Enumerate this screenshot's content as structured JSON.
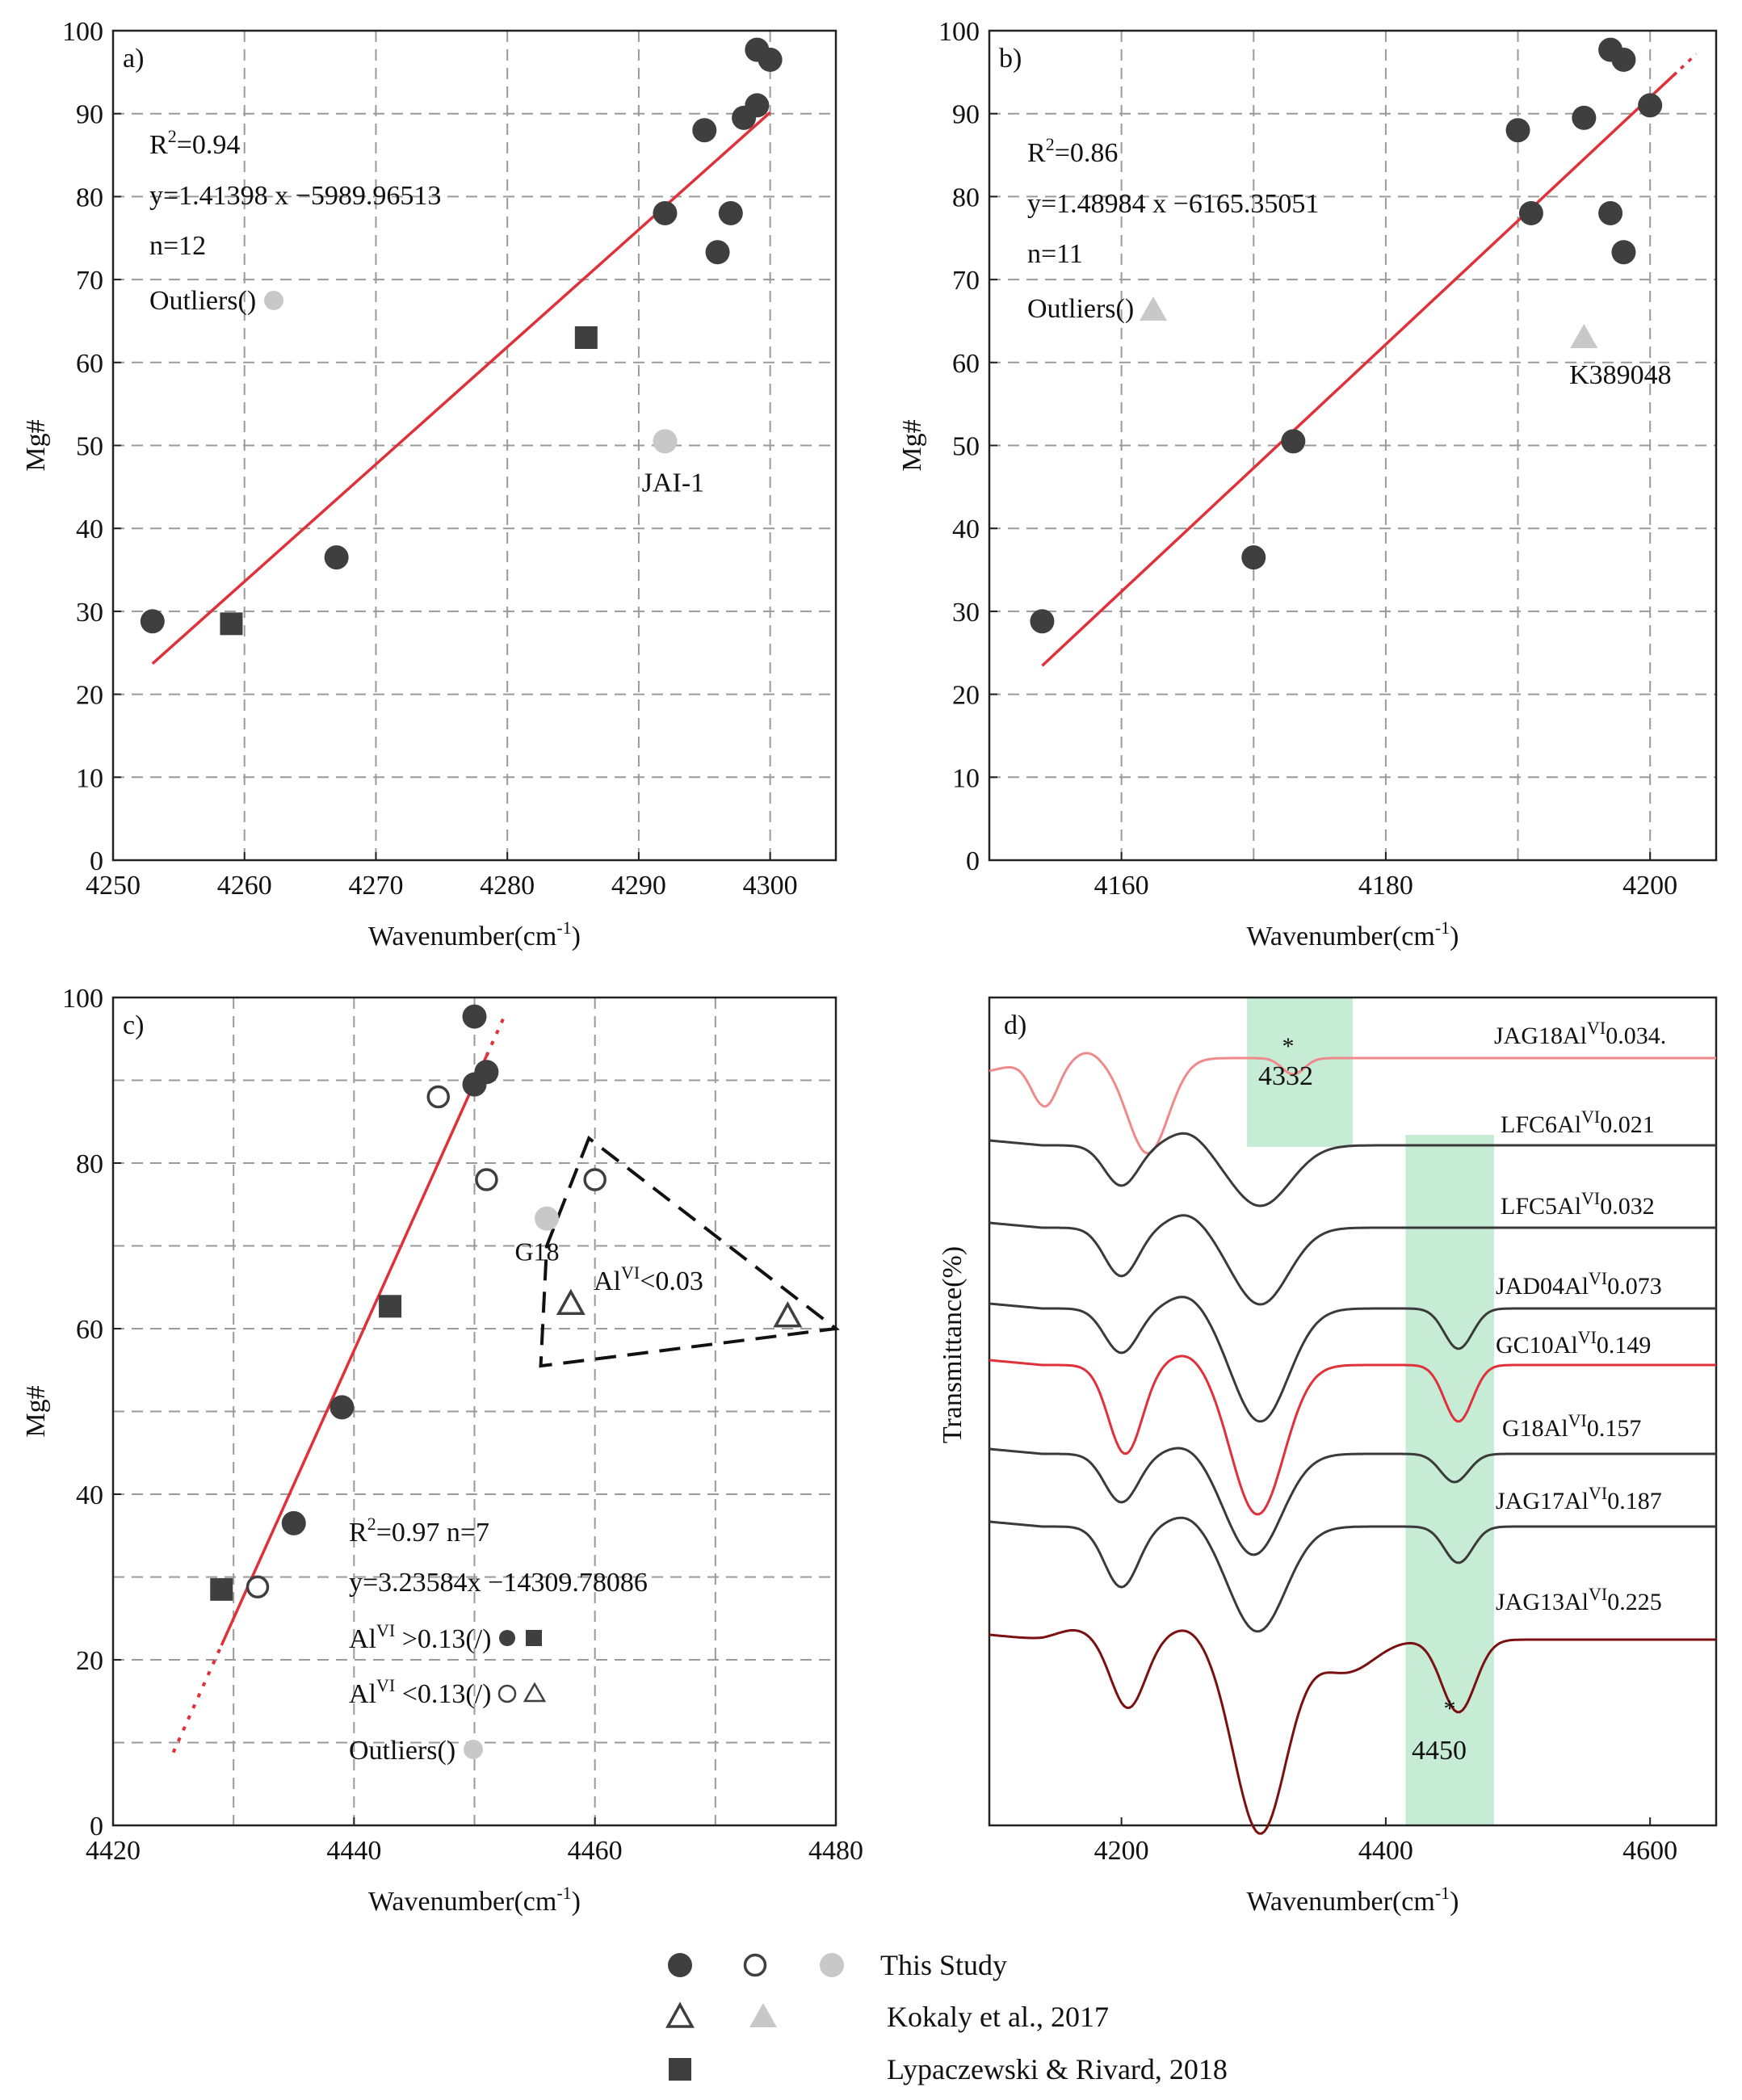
{
  "chart_data": [
    {
      "type": "scatter",
      "panel_label": "a)",
      "xlabel": "Wavenumber(cm",
      "xlabel_sup": "-1",
      "xlabel_close": ")",
      "ylabel": "Mg#",
      "xlim": [
        4250,
        4305
      ],
      "ylim": [
        0,
        100
      ],
      "xticks": [
        4250,
        4260,
        4270,
        4280,
        4290,
        4300
      ],
      "yticks": [
        0,
        10,
        20,
        30,
        40,
        50,
        60,
        70,
        80,
        90,
        100
      ],
      "annotations": {
        "r2_prefix": "R",
        "r2_sup": "2",
        "r2_value": "=0.94",
        "equation": "y=1.41398 x −5989.96513",
        "n": "n=12",
        "outliers": "Outliers(",
        "outliers_close": ")",
        "outlier_label": "JAI-1"
      },
      "fit_line": {
        "x0": 4253,
        "x1": 4300,
        "slope": 1.41398,
        "intercept": -5989.96513
      },
      "series": [
        {
          "name": "This Study (filled)",
          "marker": "circle-dark",
          "points": [
            [
              4253,
              28.8
            ],
            [
              4267,
              36.5
            ],
            [
              4292,
              78
            ],
            [
              4295,
              88
            ],
            [
              4296,
              73.3
            ],
            [
              4297,
              78
            ],
            [
              4298,
              89.5
            ],
            [
              4299,
              91
            ],
            [
              4299,
              97.7
            ],
            [
              4300,
              96.5
            ]
          ]
        },
        {
          "name": "Lypaczewski & Rivard, 2018",
          "marker": "square-dark",
          "points": [
            [
              4259,
              28.5
            ],
            [
              4286,
              63
            ]
          ]
        },
        {
          "name": "Outliers",
          "marker": "circle-gray",
          "points": [
            [
              4292,
              50.5
            ]
          ]
        }
      ]
    },
    {
      "type": "scatter",
      "panel_label": "b)",
      "xlabel": "Wavenumber(cm",
      "xlabel_sup": "-1",
      "xlabel_close": ")",
      "ylabel": "Mg#",
      "xlim": [
        4150,
        4205
      ],
      "ylim": [
        0,
        100
      ],
      "xticks": [
        4160,
        4180,
        4200
      ],
      "yticks": [
        0,
        10,
        20,
        30,
        40,
        50,
        60,
        70,
        80,
        90,
        100
      ],
      "annotations": {
        "r2_prefix": "R",
        "r2_sup": "2",
        "r2_value": "=0.86",
        "equation": "y=1.48984 x −6165.35051",
        "n": "n=11",
        "outliers": "Outliers(",
        "outliers_close": ")",
        "outlier_label": "K389048"
      },
      "fit_line": {
        "x0": 4154,
        "x1": 4202,
        "slope": 1.48984,
        "intercept": -6165.35051
      },
      "series": [
        {
          "name": "This Study (filled)",
          "marker": "circle-dark",
          "points": [
            [
              4154,
              28.8
            ],
            [
              4170,
              36.5
            ],
            [
              4173,
              50.5
            ],
            [
              4190,
              88
            ],
            [
              4191,
              78
            ],
            [
              4195,
              89.5
            ],
            [
              4197,
              97.7
            ],
            [
              4197,
              78
            ],
            [
              4198,
              96.5
            ],
            [
              4198,
              73.3
            ],
            [
              4200,
              91
            ]
          ]
        },
        {
          "name": "Outliers",
          "marker": "triangle-gray",
          "points": [
            [
              4195,
              63
            ]
          ]
        }
      ]
    },
    {
      "type": "scatter",
      "panel_label": "c)",
      "xlabel": "Wavenumber(cm",
      "xlabel_sup": "-1",
      "xlabel_close": ")",
      "ylabel": "Mg#",
      "xlim": [
        4420,
        4480
      ],
      "ylim": [
        0,
        100
      ],
      "xticks": [
        4420,
        4440,
        4460,
        4480
      ],
      "yticks": [
        0,
        20,
        40,
        60,
        80,
        100
      ],
      "annotations": {
        "r2_prefix": "R",
        "r2_sup": "2",
        "r2_value": "=0.97 n=7",
        "equation": "y=3.23584x −14309.78086",
        "al_high_prefix": "Al",
        "al_high_sup": "VI",
        "al_high_value": " >0.13(",
        "al_high_slash": "/",
        "al_high_close": ")",
        "al_low_prefix": "Al",
        "al_low_sup": "VI",
        "al_low_value": " <0.13(",
        "al_low_slash": "/",
        "al_low_close": ")",
        "outliers": "Outliers(",
        "outliers_close": ")",
        "outlier_label": "G18",
        "triangle_prefix": "Al",
        "triangle_sup": "VI",
        "triangle_value": "<0.03"
      },
      "fit_line": {
        "x0": 4429,
        "x1": 4451,
        "slope": 3.23584,
        "intercept": -14309.78086,
        "dotted_low": [
          4425,
          4429
        ],
        "dotted_high": [
          4451,
          4452.5
        ]
      },
      "outlier_region": [
        [
          4459.5,
          83
        ],
        [
          4456,
          70
        ],
        [
          4455.5,
          55.5
        ],
        [
          4480,
          60
        ]
      ],
      "series": [
        {
          "name": "This Study (filled)",
          "marker": "circle-dark",
          "points": [
            [
              4435,
              36.5
            ],
            [
              4439,
              50.5
            ],
            [
              4450,
              97.7
            ],
            [
              4450,
              89.5
            ],
            [
              4451,
              91
            ]
          ]
        },
        {
          "name": "This Study (open)",
          "marker": "circle-open",
          "points": [
            [
              4432,
              28.8
            ],
            [
              4447,
              88
            ],
            [
              4451,
              78
            ],
            [
              4460,
              78
            ]
          ]
        },
        {
          "name": "Lypaczewski & Rivard, 2018",
          "marker": "square-dark",
          "points": [
            [
              4429,
              28.5
            ],
            [
              4443,
              62.7
            ]
          ]
        },
        {
          "name": "Kokaly et al., 2017 (open)",
          "marker": "triangle-open",
          "points": [
            [
              4458,
              63
            ],
            [
              4476,
              61.5
            ]
          ]
        },
        {
          "name": "Outliers",
          "marker": "circle-gray",
          "points": [
            [
              4456,
              73.3
            ]
          ]
        }
      ]
    },
    {
      "type": "line",
      "panel_label": "d)",
      "xlabel": "Wavenumber(cm",
      "xlabel_sup": "-1",
      "xlabel_close": ")",
      "ylabel": "Transmittance(%)",
      "xlim": [
        4100,
        4650
      ],
      "xticks": [
        4200,
        4400,
        4600
      ],
      "bands": [
        {
          "x0": 4295,
          "x1": 4375,
          "label": "4332"
        },
        {
          "x0": 4415,
          "x1": 4482,
          "label": "4450"
        }
      ],
      "series": [
        {
          "name": "JAG18",
          "al_prefix": "Al",
          "al_sup": "VI",
          "al_value": "0.034.",
          "color": "#f08a8a"
        },
        {
          "name": "LFC6",
          "al_prefix": "Al",
          "al_sup": "VI",
          "al_value": "0.021",
          "color": "#3a3a3a"
        },
        {
          "name": "LFC5",
          "al_prefix": "Al",
          "al_sup": "VI",
          "al_value": "0.032",
          "color": "#3a3a3a"
        },
        {
          "name": "JAD04",
          "al_prefix": "Al",
          "al_sup": "VI",
          "al_value": "0.073",
          "color": "#3a3a3a"
        },
        {
          "name": "GC10",
          "al_prefix": "Al",
          "al_sup": "VI",
          "al_value": "0.149",
          "color": "#e0303a"
        },
        {
          "name": "G18",
          "al_prefix": "Al",
          "al_sup": "VI",
          "al_value": "0.157",
          "color": "#3a3a3a"
        },
        {
          "name": "JAG17",
          "al_prefix": "Al",
          "al_sup": "VI",
          "al_value": "0.187",
          "color": "#3a3a3a"
        },
        {
          "name": "JAG13",
          "al_prefix": "Al",
          "al_sup": "VI",
          "al_value": "0.225",
          "color": "#7a1010"
        }
      ],
      "marks": [
        "*",
        "*"
      ]
    }
  ],
  "legend": [
    {
      "label": "This Study",
      "markers": [
        "circle-dark",
        "circle-open",
        "circle-gray"
      ]
    },
    {
      "label": "Kokaly et al., 2017",
      "markers": [
        "triangle-open",
        "triangle-gray"
      ]
    },
    {
      "label": "Lypaczewski & Rivard, 2018",
      "markers": [
        "square-dark"
      ]
    }
  ],
  "colors": {
    "dark": "#3f3f3f",
    "gray": "#c8c8c8",
    "fit": "#e0303a",
    "band": "#c6ecd6"
  }
}
